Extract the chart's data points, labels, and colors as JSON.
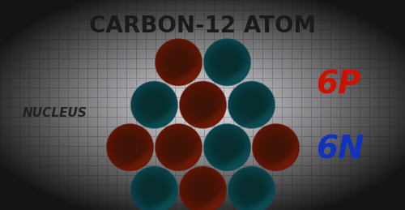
{
  "title": "CARBON-12 ATOM",
  "title_fontsize": 20,
  "title_fontweight": "bold",
  "title_color": "#1a1a1a",
  "bg_light": "#e8e8ec",
  "grid_color": "#c0c0cc",
  "proton_color_main": "#cc4010",
  "proton_color_light": "#e86030",
  "neutron_color_main": "#1a9090",
  "neutron_color_light": "#30c0c0",
  "proton_label": "6P",
  "neutron_label": "6N",
  "nucleus_label": "NUCLEUS",
  "label_color_proton": "#cc1100",
  "label_color_neutron": "#1133bb",
  "label_color_nucleus": "#222222",
  "nucleons": [
    {
      "row": 0,
      "col": 0,
      "type": "P"
    },
    {
      "row": 0,
      "col": 1,
      "type": "N"
    },
    {
      "row": 1,
      "col": 0,
      "type": "N"
    },
    {
      "row": 1,
      "col": 1,
      "type": "P"
    },
    {
      "row": 1,
      "col": 2,
      "type": "N"
    },
    {
      "row": 2,
      "col": 0,
      "type": "P"
    },
    {
      "row": 2,
      "col": 1,
      "type": "P"
    },
    {
      "row": 2,
      "col": 2,
      "type": "N"
    },
    {
      "row": 2,
      "col": 3,
      "type": "P"
    },
    {
      "row": 3,
      "col": 0,
      "type": "N"
    },
    {
      "row": 3,
      "col": 1,
      "type": "P"
    },
    {
      "row": 3,
      "col": 2,
      "type": "N"
    }
  ]
}
